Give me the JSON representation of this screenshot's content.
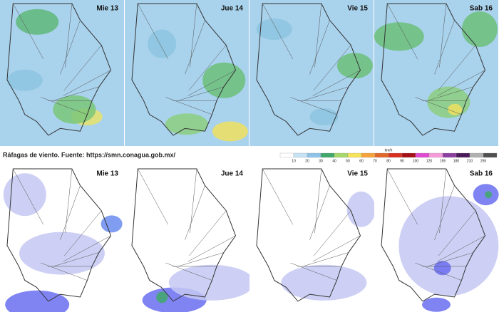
{
  "top_row": {
    "panels": [
      {
        "label": "Mie 13"
      },
      {
        "label": "Jue 14"
      },
      {
        "label": "Vie 15"
      },
      {
        "label": "Sab 16"
      }
    ]
  },
  "caption": "Ráfagas de viento.  Fuente: https://smn.conagua.gob.mx/",
  "legend": {
    "unit": "km/h",
    "labels": [
      10,
      20,
      30,
      40,
      50,
      60,
      70,
      80,
      90,
      100,
      120,
      155,
      180,
      210,
      255
    ],
    "colors": [
      "#ffffff",
      "#c6e2f5",
      "#8ec3e8",
      "#3fa86a",
      "#a6d96a",
      "#f5e35a",
      "#f5a33a",
      "#e0692a",
      "#d7301f",
      "#a50f15",
      "#e04ad0",
      "#f59bd9",
      "#8c3fa0",
      "#4a1a5a",
      "#b0b0b0",
      "#505050"
    ]
  },
  "bottom_row": {
    "panels": [
      {
        "label": "Mie 13"
      },
      {
        "label": "Jue 14"
      },
      {
        "label": "Vie 15"
      },
      {
        "label": "Sab 16"
      }
    ]
  }
}
